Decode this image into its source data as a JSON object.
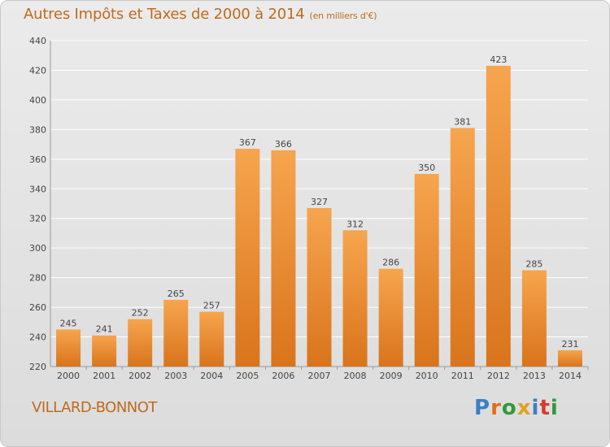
{
  "header": {
    "title": "Autres Impôts et Taxes de 2000 à 2014",
    "unit": "(en milliers d'€)"
  },
  "footer": {
    "location": "VILLARD-BONNOT",
    "logo": "Proxiti"
  },
  "colors": {
    "bar_light": "#f6a54e",
    "bar_dark": "#d9741c",
    "title": "#c06a1c",
    "grid": "#ffffff",
    "logo_letters": [
      "#3a7fc4",
      "#e06d1e",
      "#2f9a3a",
      "#e0a21e",
      "#3a7fc4",
      "#d83a2b",
      "#2f9a3a"
    ]
  },
  "chart_data": {
    "type": "bar",
    "categories": [
      "2000",
      "2001",
      "2002",
      "2003",
      "2004",
      "2005",
      "2006",
      "2007",
      "2008",
      "2009",
      "2010",
      "2011",
      "2012",
      "2013",
      "2014"
    ],
    "values": [
      245,
      241,
      252,
      265,
      257,
      367,
      366,
      327,
      312,
      286,
      350,
      381,
      423,
      285,
      231
    ],
    "yticks": [
      220,
      240,
      260,
      280,
      300,
      320,
      340,
      360,
      380,
      400,
      420,
      440
    ],
    "ylim": [
      220,
      440
    ],
    "grid": true
  }
}
